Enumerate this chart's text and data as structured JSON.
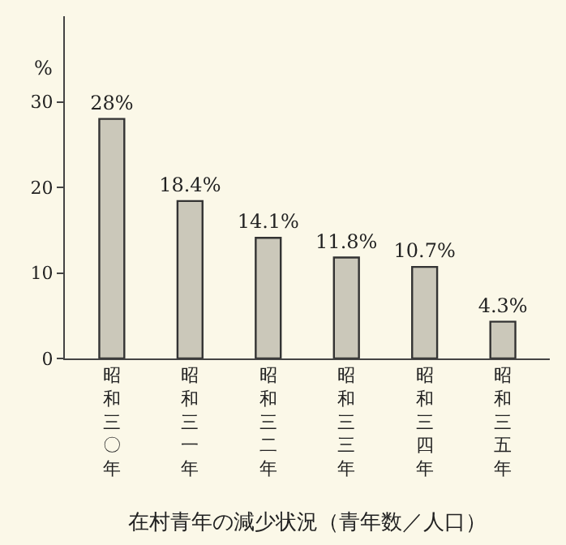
{
  "chart_data": {
    "type": "bar",
    "title": "在村青年の減少状況（青年数／人口）",
    "ylabel": "%",
    "categories": [
      "昭和三〇年",
      "昭和三一年",
      "昭和三二年",
      "昭和三三年",
      "昭和三四年",
      "昭和三五年"
    ],
    "values": [
      28,
      18.4,
      14.1,
      11.8,
      10.7,
      4.3
    ],
    "value_labels": [
      "28%",
      "18.4%",
      "14.1%",
      "11.8%",
      "10.7%",
      "4.3%"
    ],
    "color": "#cbc8ba",
    "ylim": [
      0,
      40
    ],
    "yticks": [
      0,
      10,
      20,
      30
    ],
    "grid": false,
    "legend": false
  }
}
